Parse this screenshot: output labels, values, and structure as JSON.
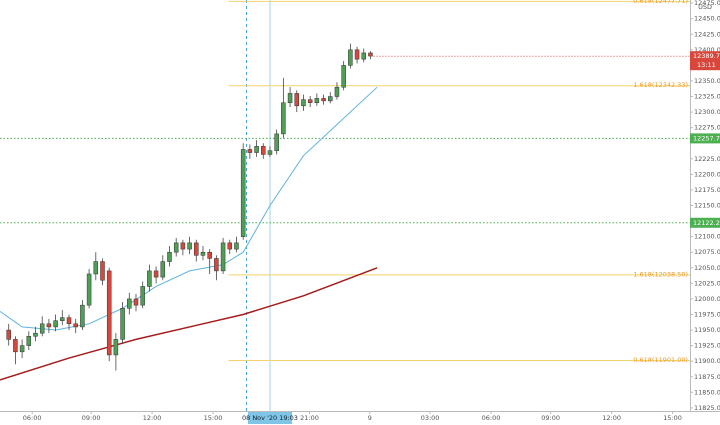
{
  "chart_data": {
    "type": "candlestick",
    "currency": "USD",
    "candles": {
      "x": [
        1,
        2,
        3,
        4,
        5,
        6,
        7,
        8,
        9,
        10,
        11,
        12,
        13,
        14,
        15,
        16,
        17,
        18,
        19,
        20,
        21,
        22,
        23,
        24,
        25,
        26,
        27,
        28,
        29,
        30,
        31,
        32,
        33,
        34,
        35,
        36,
        37,
        38,
        39,
        40,
        41,
        42,
        43,
        44,
        45,
        46,
        47,
        48,
        49,
        50,
        51,
        52,
        53,
        54,
        55
      ],
      "open": [
        11950,
        11935,
        11915,
        11925,
        11940,
        11945,
        11960,
        11955,
        11965,
        11970,
        11960,
        11955,
        11990,
        12040,
        12060,
        12045,
        11910,
        11935,
        11985,
        12000,
        11990,
        12020,
        12045,
        12035,
        12060,
        12075,
        12090,
        12080,
        12090,
        12070,
        12075,
        12065,
        12045,
        12090,
        12080,
        12100,
        12240,
        12235,
        12245,
        12232,
        12238,
        12265,
        12315,
        12330,
        12310,
        12320,
        12315,
        12322,
        12318,
        12325,
        12340,
        12375,
        12400,
        12385,
        12395
      ],
      "high": [
        11960,
        11940,
        11935,
        11948,
        11955,
        11972,
        11968,
        11975,
        11982,
        11975,
        11968,
        11998,
        12048,
        12075,
        12065,
        12050,
        11945,
        11995,
        12010,
        12008,
        12028,
        12055,
        12052,
        12070,
        12085,
        12098,
        12095,
        12100,
        12095,
        12085,
        12080,
        12070,
        12098,
        12095,
        12100,
        12250,
        12248,
        12255,
        12250,
        12245,
        12272,
        12355,
        12340,
        12335,
        12328,
        12326,
        12330,
        12328,
        12332,
        12348,
        12382,
        12410,
        12405,
        12402,
        12398
      ],
      "low": [
        11925,
        11895,
        11905,
        11918,
        11932,
        11940,
        11945,
        11948,
        11958,
        11950,
        11945,
        11950,
        11985,
        12030,
        12022,
        11900,
        11885,
        11928,
        11975,
        11980,
        11985,
        12012,
        12025,
        12030,
        12052,
        12068,
        12070,
        12072,
        12060,
        12062,
        12040,
        12030,
        12040,
        12072,
        12075,
        12095,
        12225,
        12228,
        12225,
        12228,
        12232,
        12258,
        12308,
        12300,
        12302,
        12308,
        12310,
        12312,
        12314,
        12320,
        12335,
        12370,
        12378,
        12380,
        12385
      ],
      "close": [
        11935,
        11915,
        11925,
        11940,
        11945,
        11960,
        11955,
        11965,
        11970,
        11960,
        11955,
        11990,
        12040,
        12060,
        12030,
        11910,
        11935,
        11985,
        12000,
        11990,
        12020,
        12045,
        12035,
        12060,
        12075,
        12090,
        12080,
        12090,
        12070,
        12075,
        12065,
        12045,
        12090,
        12080,
        12090,
        12240,
        12235,
        12245,
        12232,
        12238,
        12265,
        12315,
        12330,
        12310,
        12320,
        12315,
        12322,
        12318,
        12325,
        12340,
        12375,
        12400,
        12385,
        12395,
        12390
      ]
    },
    "up_color": "#4e9e55",
    "down_color": "#d8473c",
    "series": [
      {
        "color": "#5fb3e0",
        "x": [
          -0.3,
          3,
          8,
          13,
          18,
          23,
          28,
          33,
          36,
          40,
          45,
          50,
          56
        ],
        "values": [
          11980,
          11955,
          11950,
          11960,
          11985,
          12020,
          12045,
          12055,
          12075,
          12150,
          12230,
          12280,
          12340
        ]
      },
      {
        "color": "#a51c1c",
        "x": [
          -0.3,
          10,
          20,
          30,
          36,
          45,
          56
        ],
        "values": [
          11870,
          11905,
          11935,
          11960,
          11975,
          12005,
          12050
        ]
      }
    ],
    "levels": [
      {
        "value": 12257.75,
        "color": "#4caf50"
      },
      {
        "value": 12122.25,
        "color": "#4caf50"
      }
    ],
    "fib_levels": [
      {
        "value": 12477.71,
        "label": "0.618(12477.71)",
        "start": 33.8
      },
      {
        "value": 12342.33,
        "label": "1.618(12342.33)",
        "start": 33.8
      },
      {
        "value": 12038.5,
        "label": "1.618(12038.50)",
        "start": 33.8
      },
      {
        "value": 11901,
        "label": "0.618(11901.00)",
        "start": 33.8
      }
    ],
    "last_price": 12389.75,
    "countdown": "13:11",
    "session_break_x": 36.5,
    "crosshair": {
      "x": 40,
      "label": "08 Nov '20  19:03"
    },
    "xlim": [
      -0.3,
      102.7
    ],
    "ylim": [
      11820,
      12480
    ],
    "xticks": [
      {
        "value": 4.5,
        "label": "06:00"
      },
      {
        "value": 13.3,
        "label": "09:00"
      },
      {
        "value": 22.4,
        "label": "12:00"
      },
      {
        "value": 31.5,
        "label": "15:00"
      },
      {
        "value": 45.9,
        "label": "21:00"
      },
      {
        "value": 54.9,
        "label": "9"
      },
      {
        "value": 63.9,
        "label": "03:00"
      },
      {
        "value": 73,
        "label": "06:00"
      },
      {
        "value": 81.9,
        "label": "09:00"
      },
      {
        "value": 91,
        "label": "12:00"
      },
      {
        "value": 100.1,
        "label": "15:00"
      }
    ],
    "yticks": [
      {
        "value": 11825,
        "label": "11825.00"
      },
      {
        "value": 11850,
        "label": "11850.00"
      },
      {
        "value": 11875,
        "label": "11875.00"
      },
      {
        "value": 11900,
        "label": "11900.00"
      },
      {
        "value": 11925,
        "label": "11925.00"
      },
      {
        "value": 11950,
        "label": "11950.00"
      },
      {
        "value": 11975,
        "label": "11975.00"
      },
      {
        "value": 12000,
        "label": "12000.00"
      },
      {
        "value": 12025,
        "label": "12025.00"
      },
      {
        "value": 12050,
        "label": "12050.00"
      },
      {
        "value": 12075,
        "label": "12075.00"
      },
      {
        "value": 12100,
        "label": "12100.00"
      },
      {
        "value": 12150,
        "label": "12150.00"
      },
      {
        "value": 12175,
        "label": "12175.00"
      },
      {
        "value": 12200,
        "label": "12200.00"
      },
      {
        "value": 12225,
        "label": "12225.00"
      },
      {
        "value": 12275,
        "label": "12275.00"
      },
      {
        "value": 12300,
        "label": "12300.00"
      },
      {
        "value": 12325,
        "label": "12325.00"
      },
      {
        "value": 12350,
        "label": "12350.00"
      },
      {
        "value": 12400,
        "label": "12400.00"
      },
      {
        "value": 12425,
        "label": "12425.00"
      },
      {
        "value": 12450,
        "label": "12450.00"
      },
      {
        "value": 12475,
        "label": "12475.00"
      }
    ],
    "grid": false
  }
}
